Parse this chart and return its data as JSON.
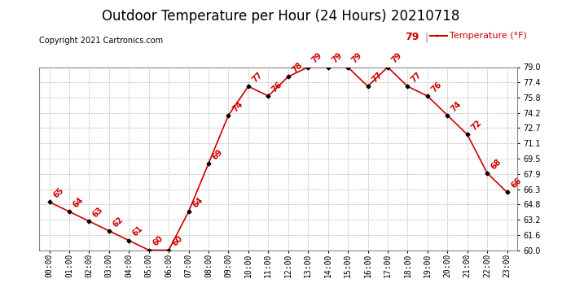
{
  "title": "Outdoor Temperature per Hour (24 Hours) 20210718",
  "copyright": "Copyright 2021 Cartronics.com",
  "legend_label": "Temperature (°F)",
  "legend_value": "79",
  "hours": [
    "00:00",
    "01:00",
    "02:00",
    "03:00",
    "04:00",
    "05:00",
    "06:00",
    "07:00",
    "08:00",
    "09:00",
    "10:00",
    "11:00",
    "12:00",
    "13:00",
    "14:00",
    "15:00",
    "16:00",
    "17:00",
    "18:00",
    "19:00",
    "20:00",
    "21:00",
    "22:00",
    "23:00"
  ],
  "temps": [
    65,
    64,
    63,
    62,
    61,
    60,
    60,
    64,
    69,
    74,
    77,
    76,
    78,
    79,
    79,
    79,
    77,
    79,
    77,
    76,
    74,
    72,
    68,
    66
  ],
  "ylim": [
    60.0,
    79.0
  ],
  "yticks": [
    60.0,
    61.6,
    63.2,
    64.8,
    66.3,
    67.9,
    69.5,
    71.1,
    72.7,
    74.2,
    75.8,
    77.4,
    79.0
  ],
  "line_color": "#cc0000",
  "marker_color": "#000000",
  "grid_color": "#bbbbbb",
  "background_color": "#ffffff",
  "title_fontsize": 12,
  "tick_fontsize": 7,
  "annotation_fontsize": 7,
  "copyright_fontsize": 7,
  "legend_fontsize": 8
}
